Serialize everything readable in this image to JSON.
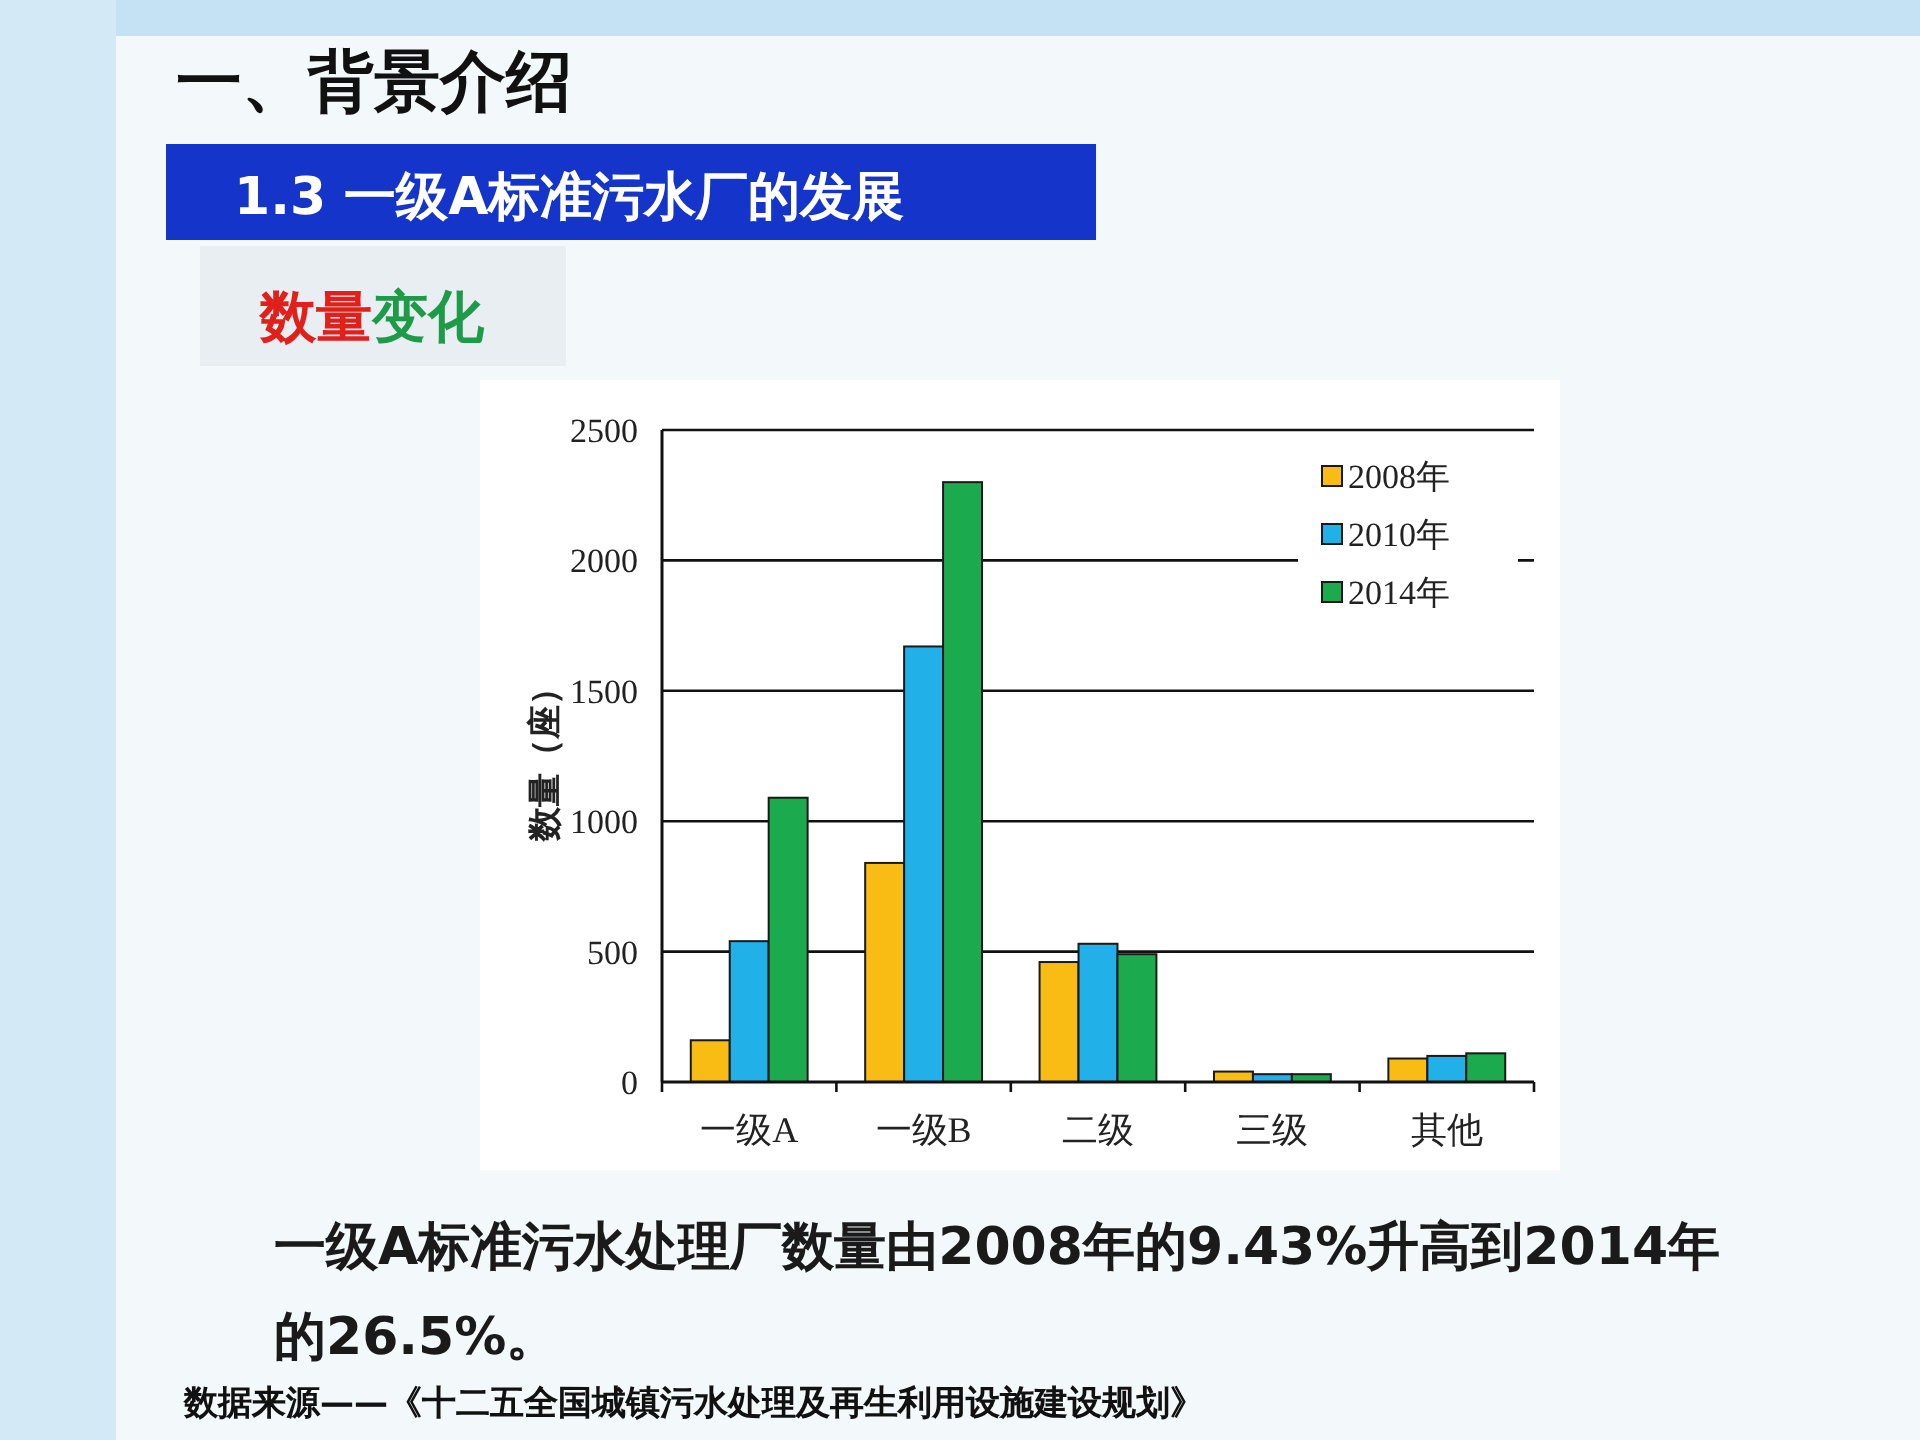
{
  "chart_data": {
    "type": "bar",
    "title": "一、背景介绍",
    "subtitle": "1.3 一级A标准污水厂的发展",
    "ylabel": "数量（座）",
    "categories": [
      "一级A",
      "一级B",
      "二级",
      "三级",
      "其他"
    ],
    "series": [
      {
        "name": "2008年",
        "color": "#f9bc15",
        "values": [
          160,
          840,
          460,
          40,
          90
        ]
      },
      {
        "name": "2010年",
        "color": "#22b0e8",
        "values": [
          540,
          1670,
          530,
          30,
          100
        ]
      },
      {
        "name": "2014年",
        "color": "#1caa4e",
        "values": [
          1090,
          2300,
          490,
          30,
          110
        ]
      }
    ],
    "ylim": [
      0,
      2500
    ],
    "yticks": [
      0,
      500,
      1000,
      1500,
      2000,
      2500
    ],
    "grid": "y",
    "legend": "top right",
    "annotations": [
      "数量变化",
      "一级A标准污水处理厂数量由2008年的9.43%升高到2014年的26.5%。",
      "数据来源——《十二五全国城镇污水处理及再生利用设施建设规划》"
    ]
  }
}
